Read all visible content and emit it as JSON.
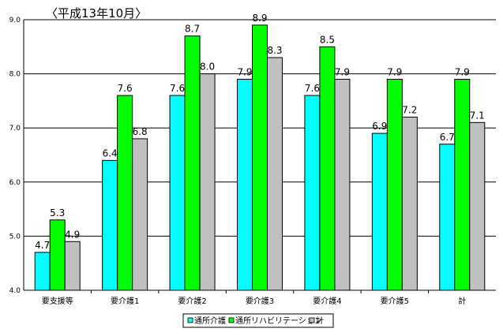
{
  "chart_data": {
    "type": "bar",
    "title": "〈平成13年10月〉",
    "categories": [
      "要支援等",
      "要介護1",
      "要介護2",
      "要介護3",
      "要介護4",
      "要介護5",
      "計"
    ],
    "series": [
      {
        "name": "通所介護",
        "color": "#00ffff",
        "values": [
          4.7,
          6.4,
          7.6,
          7.9,
          7.6,
          6.9,
          6.7
        ]
      },
      {
        "name": "通所リハビリテーション",
        "color": "#00ff00",
        "values": [
          5.3,
          7.6,
          8.7,
          8.9,
          8.5,
          7.9,
          7.9
        ]
      },
      {
        "name": "計",
        "color": "#c0c0c0",
        "values": [
          4.9,
          6.8,
          8.0,
          8.3,
          7.9,
          7.2,
          7.1
        ]
      }
    ],
    "ylim": [
      4.0,
      9.0
    ],
    "yticks": [
      "4.0",
      "5.0",
      "6.0",
      "7.0",
      "8.0",
      "9.0"
    ],
    "grid": true,
    "legend_position": "bottom"
  }
}
